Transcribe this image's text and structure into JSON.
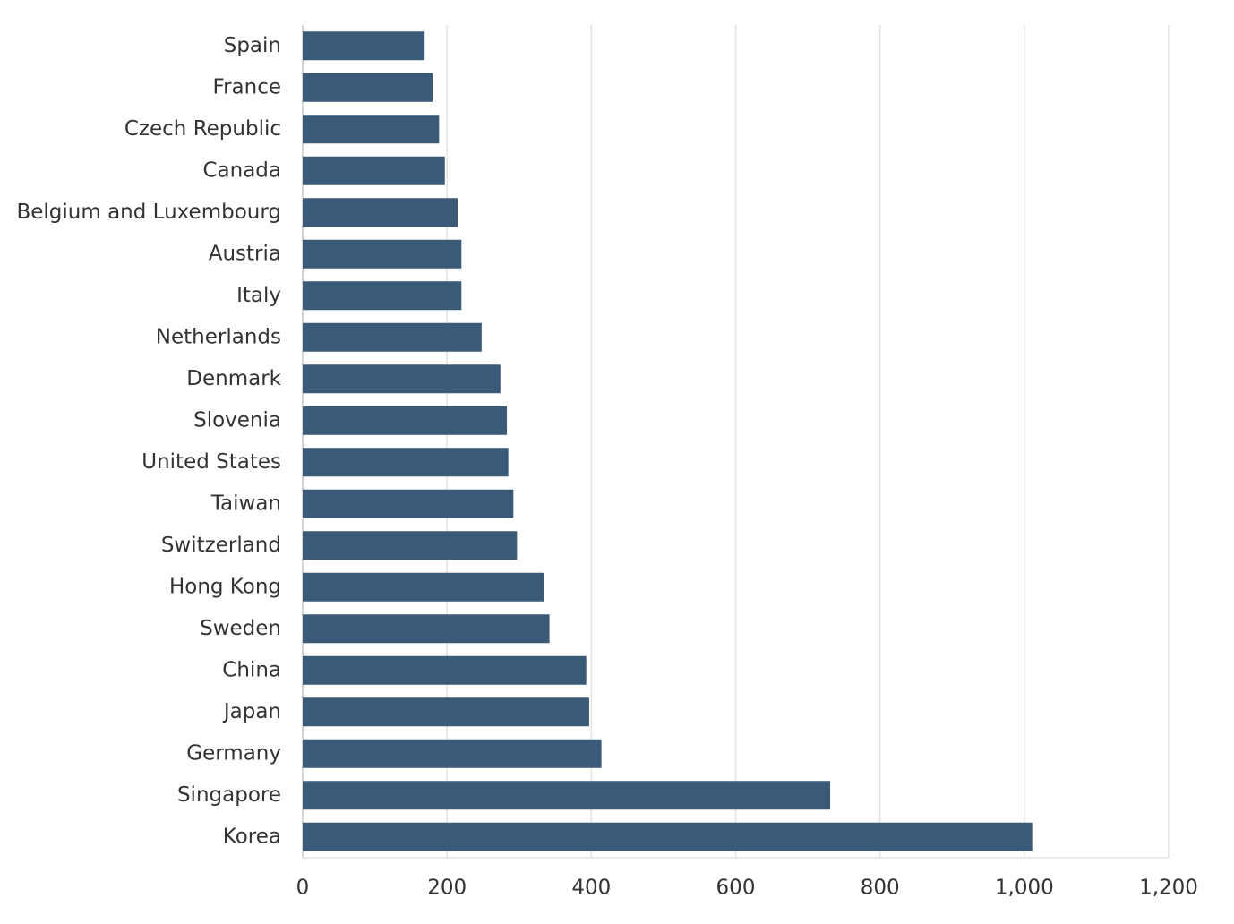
{
  "chart_data": {
    "type": "barh",
    "categories": [
      "Spain",
      "France",
      "Czech Republic",
      "Canada",
      "Belgium and Luxembourg",
      "Austria",
      "Italy",
      "Netherlands",
      "Denmark",
      "Slovenia",
      "United States",
      "Taiwan",
      "Switzerland",
      "Hong Kong",
      "Sweden",
      "China",
      "Japan",
      "Germany",
      "Singapore",
      "Korea"
    ],
    "values": [
      169,
      180,
      189,
      197,
      215,
      220,
      220,
      248,
      274,
      283,
      285,
      292,
      297,
      334,
      342,
      393,
      397,
      414,
      731,
      1011
    ],
    "color": "#3a5a78",
    "xlim": [
      0,
      1200
    ],
    "xticks": [
      0,
      200,
      400,
      600,
      800,
      {
        "value": 1000,
        "label": "1,000"
      },
      {
        "value": 1200,
        "label": "1,200"
      }
    ],
    "grid": true
  }
}
